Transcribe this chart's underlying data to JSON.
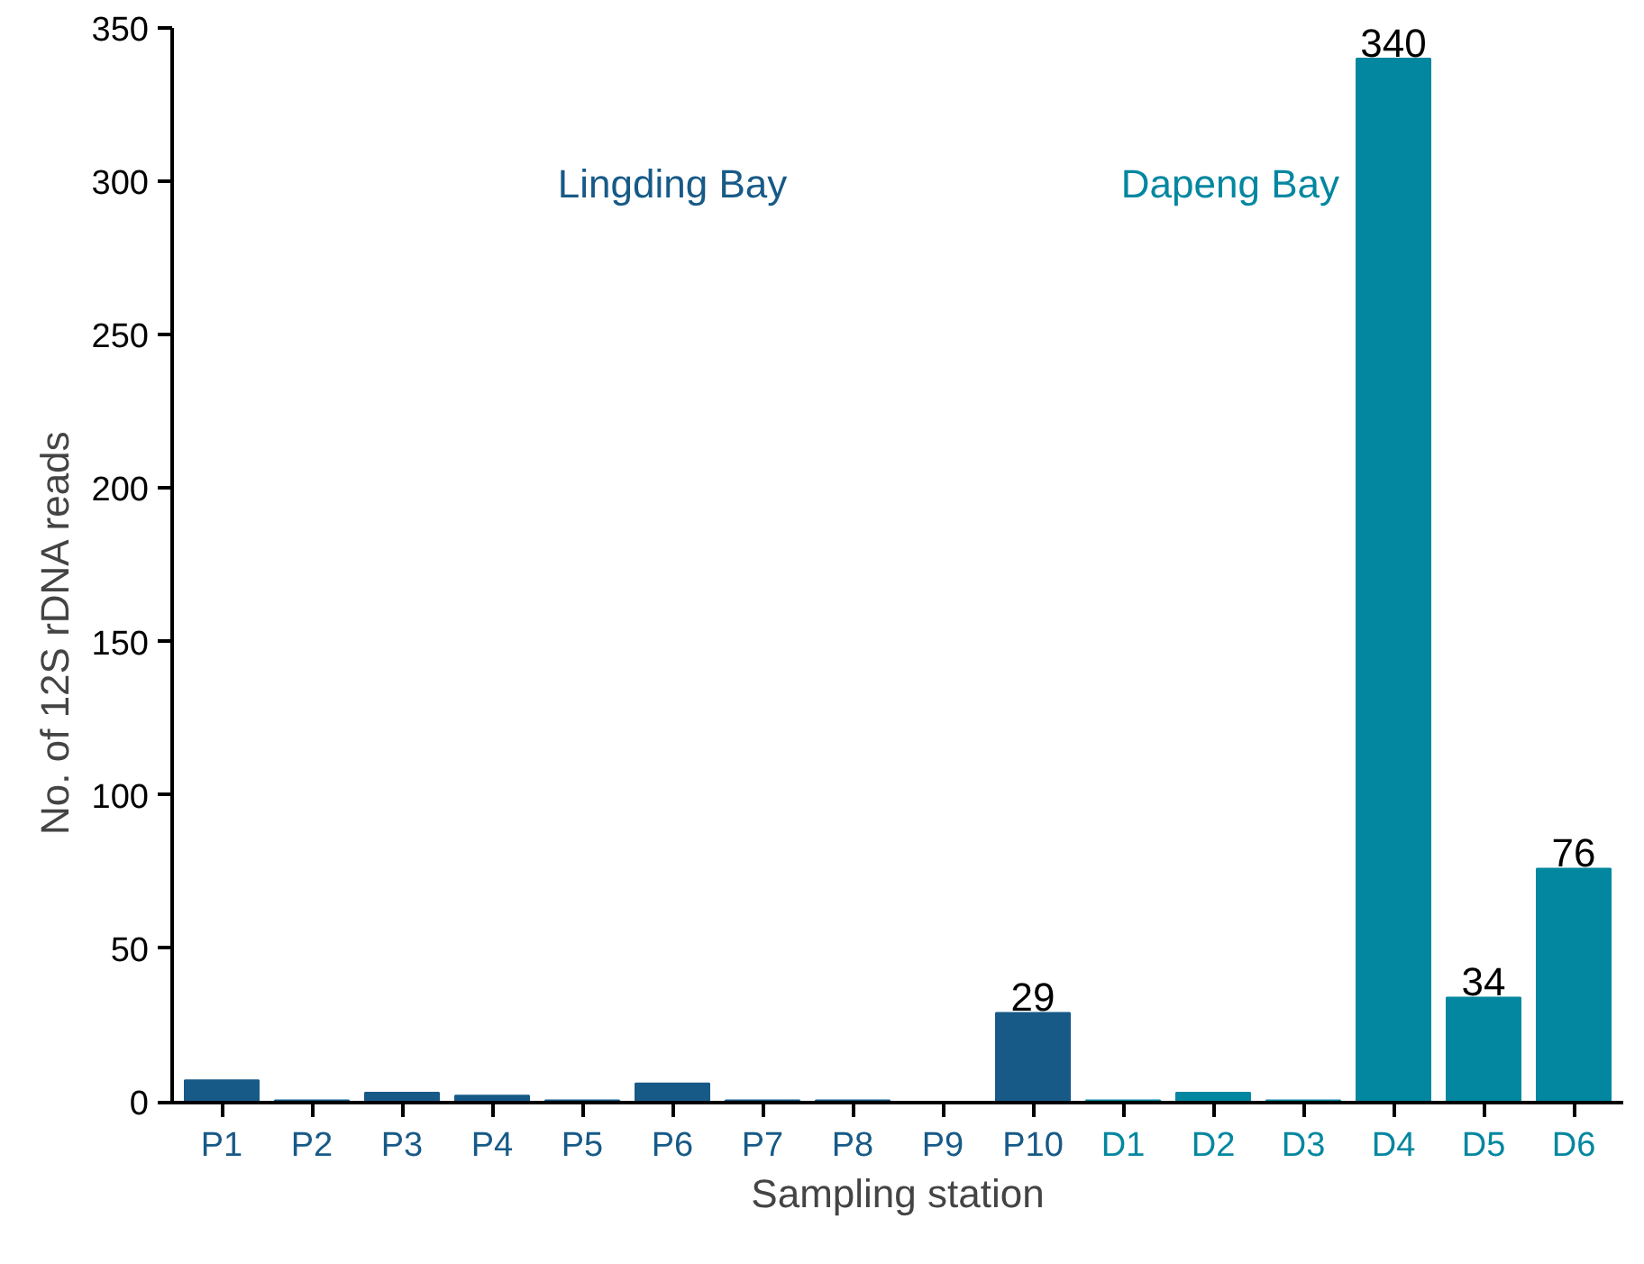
{
  "chart_data": {
    "type": "bar",
    "xlabel": "Sampling station",
    "ylabel": "No. of 12S rDNA reads",
    "categories": [
      "P1",
      "P2",
      "P3",
      "P4",
      "P5",
      "P6",
      "P7",
      "P8",
      "P9",
      "P10",
      "D1",
      "D2",
      "D3",
      "D4",
      "D5",
      "D6"
    ],
    "series": [
      {
        "name": "Lingding Bay",
        "color": "#175a87",
        "values": [
          7,
          0.5,
          3,
          2,
          0.5,
          6,
          0.5,
          0.5,
          0,
          29,
          null,
          null,
          null,
          null,
          null,
          null
        ],
        "value_labels": [
          null,
          null,
          null,
          null,
          null,
          null,
          null,
          null,
          null,
          "29",
          null,
          null,
          null,
          null,
          null,
          null
        ]
      },
      {
        "name": "Dapeng Bay",
        "color": "#0387a0",
        "values": [
          null,
          null,
          null,
          null,
          null,
          null,
          null,
          null,
          null,
          null,
          0.5,
          3,
          0.5,
          340,
          34,
          76
        ],
        "value_labels": [
          null,
          null,
          null,
          null,
          null,
          null,
          null,
          null,
          null,
          null,
          null,
          null,
          null,
          "340",
          "34",
          "76"
        ]
      }
    ],
    "ylim": [
      0,
      350
    ],
    "yticks": [
      0,
      50,
      100,
      150,
      200,
      250,
      300,
      350
    ],
    "grid": false
  }
}
